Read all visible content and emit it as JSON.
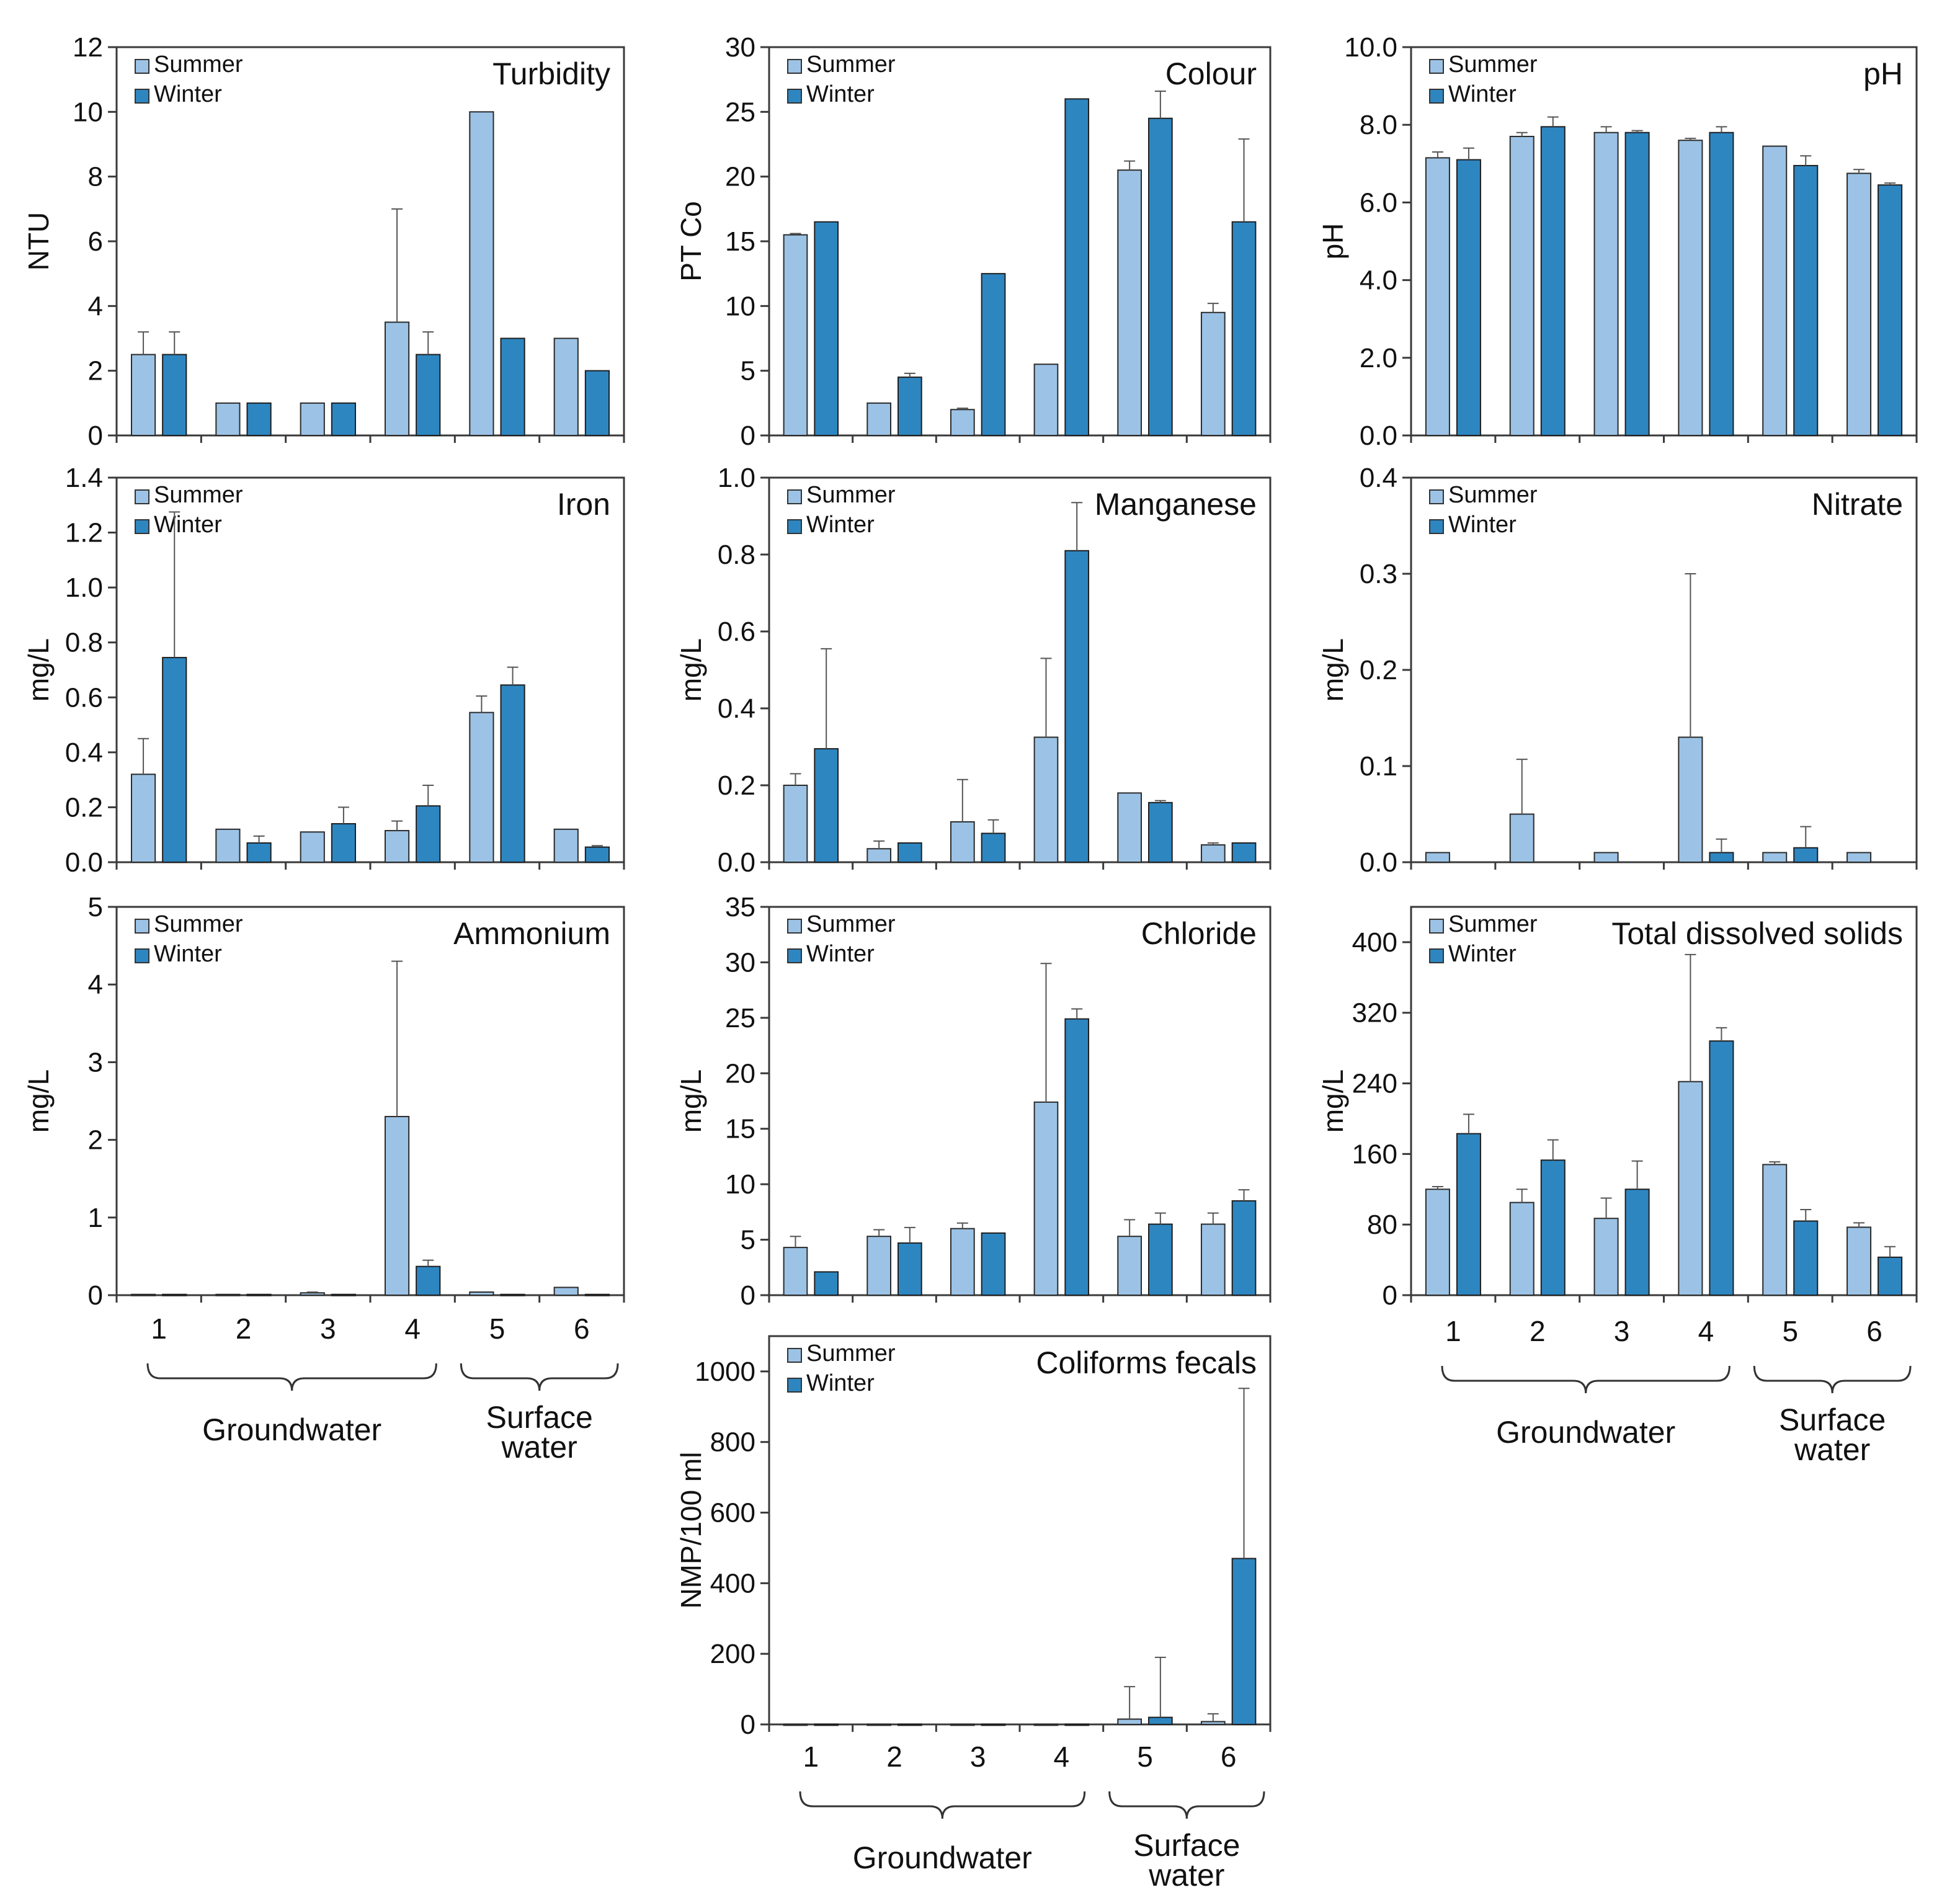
{
  "colors": {
    "summer": "#9cc3e6",
    "winter": "#2e86c1"
  },
  "legend": {
    "summer": "Summer",
    "winter": "Winter"
  },
  "chart_data": [
    {
      "type": "bar",
      "title": "Turbidity",
      "ylabel": "NTU",
      "ylim": [
        0,
        12
      ],
      "yticks": [
        "0",
        "2",
        "4",
        "6",
        "8",
        "10",
        "12"
      ],
      "categories": [
        "1",
        "2",
        "3",
        "4",
        "5",
        "6"
      ],
      "series": [
        {
          "name": "Summer",
          "values": [
            2.5,
            1.0,
            1.0,
            3.5,
            10.0,
            3.0
          ],
          "err": [
            0.7,
            0,
            0,
            3.5,
            0,
            0
          ]
        },
        {
          "name": "Winter",
          "values": [
            2.5,
            1.0,
            1.0,
            2.5,
            3.0,
            2.0
          ],
          "err": [
            0.7,
            0,
            0,
            0.7,
            0,
            0
          ]
        }
      ]
    },
    {
      "type": "bar",
      "title": "Colour",
      "ylabel": "PT Co",
      "ylim": [
        0,
        30
      ],
      "yticks": [
        "0",
        "5",
        "10",
        "15",
        "20",
        "25",
        "30"
      ],
      "categories": [
        "1",
        "2",
        "3",
        "4",
        "5",
        "6"
      ],
      "series": [
        {
          "name": "Summer",
          "values": [
            15.5,
            2.5,
            2.0,
            5.5,
            20.5,
            9.5
          ],
          "err": [
            0.1,
            0,
            0.1,
            0,
            0.7,
            0.7
          ]
        },
        {
          "name": "Winter",
          "values": [
            16.5,
            4.5,
            12.5,
            26.0,
            24.5,
            16.5
          ],
          "err": [
            0,
            0.3,
            0,
            0,
            2.1,
            6.4
          ]
        }
      ]
    },
    {
      "type": "bar",
      "title": "pH",
      "ylabel": "pH",
      "ylim": [
        0,
        10
      ],
      "yticks": [
        "0.0",
        "2.0",
        "4.0",
        "6.0",
        "8.0",
        "10.0"
      ],
      "categories": [
        "1",
        "2",
        "3",
        "4",
        "5",
        "6"
      ],
      "series": [
        {
          "name": "Summer",
          "values": [
            7.15,
            7.7,
            7.8,
            7.6,
            7.45,
            6.75
          ],
          "err": [
            0.15,
            0.1,
            0.15,
            0.05,
            0,
            0.1
          ]
        },
        {
          "name": "Winter",
          "values": [
            7.1,
            7.95,
            7.8,
            7.8,
            6.95,
            6.45
          ],
          "err": [
            0.3,
            0.25,
            0.05,
            0.15,
            0.25,
            0.05
          ]
        }
      ]
    },
    {
      "type": "bar",
      "title": "Iron",
      "ylabel": "mg/L",
      "ylim": [
        0,
        1.4
      ],
      "yticks": [
        "0.0",
        "0.2",
        "0.4",
        "0.6",
        "0.8",
        "1.0",
        "1.2",
        "1.4"
      ],
      "categories": [
        "1",
        "2",
        "3",
        "4",
        "5",
        "6"
      ],
      "series": [
        {
          "name": "Summer",
          "values": [
            0.32,
            0.12,
            0.11,
            0.115,
            0.545,
            0.12
          ],
          "err": [
            0.13,
            0,
            0,
            0.035,
            0.06,
            0
          ]
        },
        {
          "name": "Winter",
          "values": [
            0.745,
            0.07,
            0.14,
            0.205,
            0.645,
            0.055
          ],
          "err": [
            0.53,
            0.025,
            0.06,
            0.075,
            0.065,
            0.005
          ]
        }
      ]
    },
    {
      "type": "bar",
      "title": "Manganese",
      "ylabel": "mg/L",
      "ylim": [
        0,
        1.0
      ],
      "yticks": [
        "0.0",
        "0.2",
        "0.4",
        "0.6",
        "0.8",
        "1.0"
      ],
      "categories": [
        "1",
        "2",
        "3",
        "4",
        "5",
        "6"
      ],
      "series": [
        {
          "name": "Summer",
          "values": [
            0.2,
            0.035,
            0.105,
            0.325,
            0.18,
            0.045
          ],
          "err": [
            0.03,
            0.02,
            0.11,
            0.205,
            0,
            0.005
          ]
        },
        {
          "name": "Winter",
          "values": [
            0.295,
            0.05,
            0.075,
            0.81,
            0.155,
            0.05
          ],
          "err": [
            0.26,
            0,
            0.035,
            0.125,
            0.005,
            0
          ]
        }
      ]
    },
    {
      "type": "bar",
      "title": "Nitrate",
      "ylabel": "mg/L",
      "ylim": [
        0,
        0.4
      ],
      "yticks": [
        "0.0",
        "0.1",
        "0.2",
        "0.3",
        "0.4"
      ],
      "categories": [
        "1",
        "2",
        "3",
        "4",
        "5",
        "6"
      ],
      "series": [
        {
          "name": "Summer",
          "values": [
            0.01,
            0.05,
            0.01,
            0.13,
            0.01,
            0.01
          ],
          "err": [
            0,
            0.057,
            0,
            0.17,
            0,
            0
          ]
        },
        {
          "name": "Winter",
          "values": [
            0,
            0,
            0,
            0.01,
            0.015,
            0
          ],
          "err": [
            0,
            0,
            0,
            0.014,
            0.022,
            0
          ]
        }
      ]
    },
    {
      "type": "bar",
      "title": "Ammonium",
      "ylabel": "mg/L",
      "ylim": [
        0,
        5
      ],
      "yticks": [
        "0",
        "1",
        "2",
        "3",
        "4",
        "5"
      ],
      "categories": [
        "1",
        "2",
        "3",
        "4",
        "5",
        "6"
      ],
      "series": [
        {
          "name": "Summer",
          "values": [
            0.01,
            0.01,
            0.03,
            2.3,
            0.04,
            0.1
          ],
          "err": [
            0,
            0,
            0.01,
            2.0,
            0,
            0
          ]
        },
        {
          "name": "Winter",
          "values": [
            0.01,
            0.01,
            0.01,
            0.37,
            0.01,
            0.01
          ],
          "err": [
            0,
            0,
            0,
            0.08,
            0,
            0
          ]
        }
      ]
    },
    {
      "type": "bar",
      "title": "Chloride",
      "ylabel": "mg/L",
      "ylim": [
        0,
        35
      ],
      "yticks": [
        "0",
        "5",
        "10",
        "15",
        "20",
        "25",
        "30",
        "35"
      ],
      "categories": [
        "1",
        "2",
        "3",
        "4",
        "5",
        "6"
      ],
      "series": [
        {
          "name": "Summer",
          "values": [
            4.3,
            5.3,
            6.0,
            17.4,
            5.3,
            6.4
          ],
          "err": [
            1.0,
            0.6,
            0.5,
            12.5,
            1.5,
            1.0
          ]
        },
        {
          "name": "Winter",
          "values": [
            2.1,
            4.7,
            5.6,
            24.9,
            6.4,
            8.5
          ],
          "err": [
            0,
            1.4,
            0,
            0.9,
            1.0,
            1.0
          ]
        }
      ]
    },
    {
      "type": "bar",
      "title": "Total dissolved solids",
      "ylabel": "mg/L",
      "ylim": [
        0,
        440
      ],
      "yticks": [
        "0",
        "80",
        "160",
        "240",
        "320",
        "400"
      ],
      "categories": [
        "1",
        "2",
        "3",
        "4",
        "5",
        "6"
      ],
      "series": [
        {
          "name": "Summer",
          "values": [
            120,
            105,
            87,
            242,
            148,
            77
          ],
          "err": [
            3,
            15,
            23,
            144,
            3,
            5
          ]
        },
        {
          "name": "Winter",
          "values": [
            183,
            153,
            120,
            288,
            84,
            43
          ],
          "err": [
            22,
            23,
            32,
            15,
            13,
            12
          ]
        }
      ]
    },
    {
      "type": "bar",
      "title": "Coliforms fecals",
      "ylabel": "NMP/100 ml",
      "ylim": [
        0,
        1100
      ],
      "yticks": [
        "0",
        "200",
        "400",
        "600",
        "800",
        "1000"
      ],
      "categories": [
        "1",
        "2",
        "3",
        "4",
        "5",
        "6"
      ],
      "series": [
        {
          "name": "Summer",
          "values": [
            1,
            1,
            1,
            1,
            15,
            8
          ],
          "err": [
            0,
            0,
            0,
            0,
            92,
            22
          ]
        },
        {
          "name": "Winter",
          "values": [
            1,
            1,
            1,
            1,
            20,
            470
          ],
          "err": [
            0,
            0,
            0,
            0,
            170,
            482
          ]
        }
      ]
    }
  ],
  "groups": {
    "groundwater": "Groundwater",
    "surface": [
      "Surface",
      "water"
    ]
  }
}
